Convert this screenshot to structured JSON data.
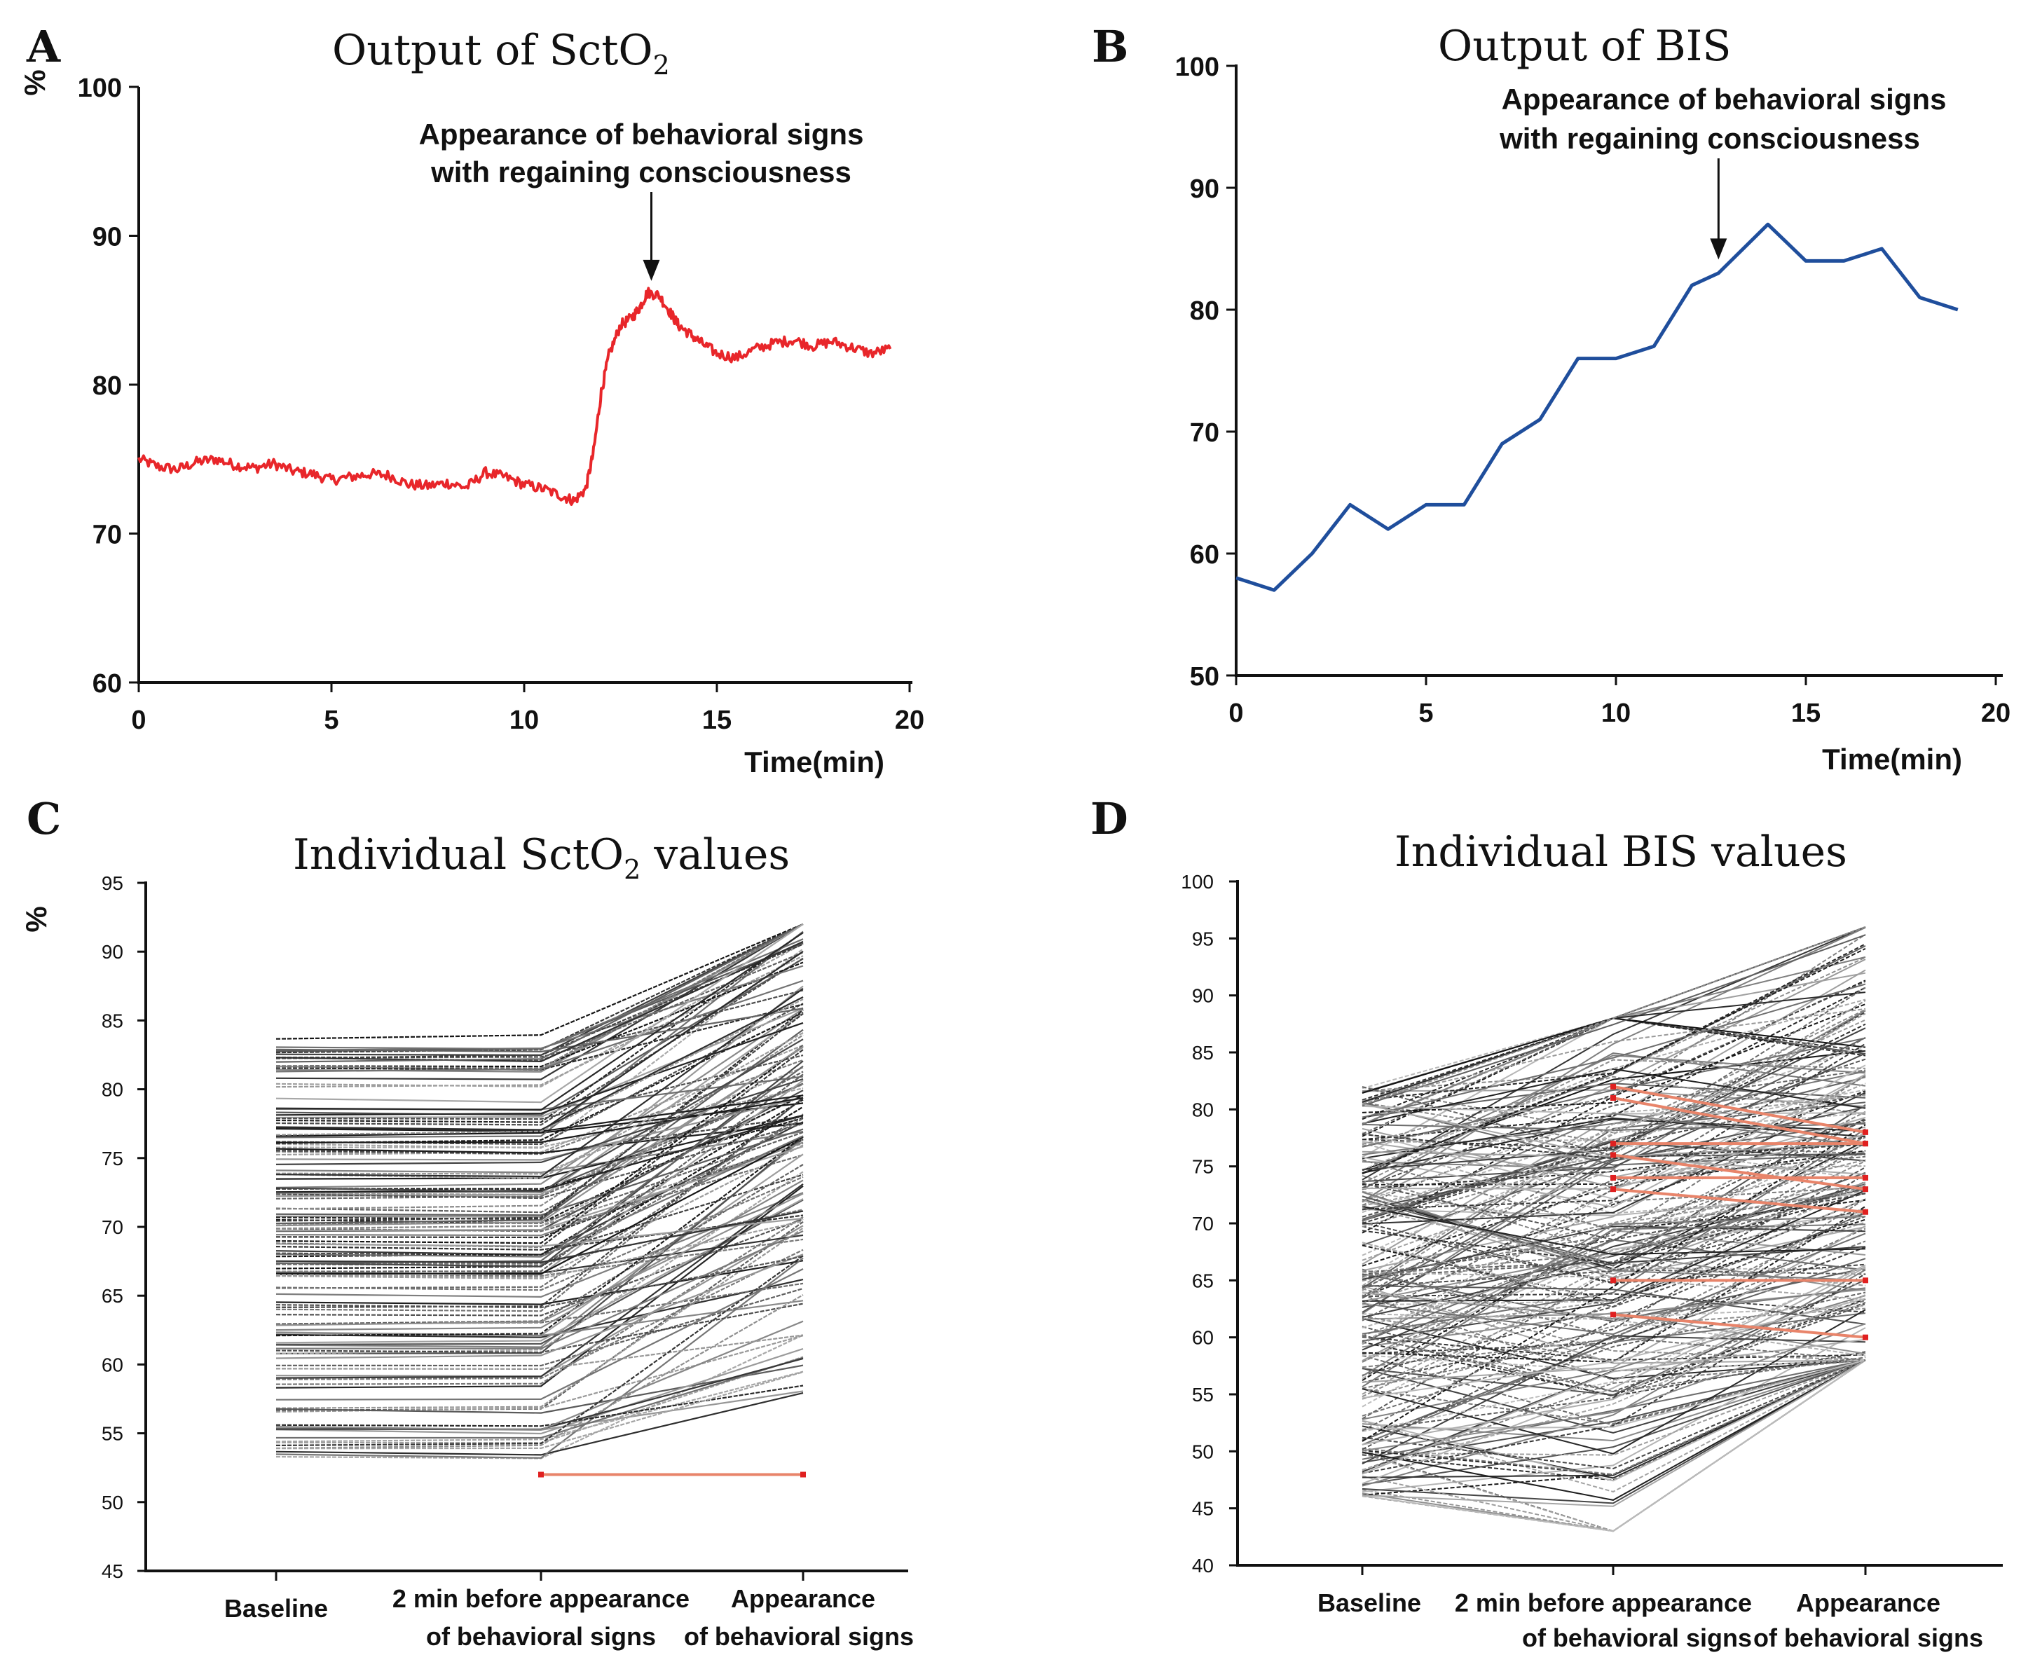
{
  "colors": {
    "sct_line": "#e8262a",
    "bis_line": "#1f4e9c",
    "individual": "#222222",
    "highlight": "#e8846a",
    "highlight_point": "#e02020"
  },
  "chart_data": [
    {
      "id": "A",
      "letter": "A",
      "type": "line",
      "title": "Output of SctO",
      "title_sub": "2",
      "ylabel": "%",
      "xlabel": "Time(min)",
      "xlim": [
        0,
        20
      ],
      "ylim": [
        60,
        100
      ],
      "xticks": [
        "0",
        "5",
        "10",
        "15",
        "20"
      ],
      "yticks": [
        "60",
        "70",
        "80",
        "90",
        "100"
      ],
      "annotation": {
        "line1": "Appearance of behavioral signs",
        "line2": "with regaining consciousness",
        "x": 13.3,
        "y": 86.5
      },
      "x": [
        0,
        0.5,
        1,
        1.5,
        2,
        2.5,
        3,
        3.5,
        4,
        4.5,
        5,
        5.5,
        6,
        6.5,
        7,
        7.5,
        8,
        8.5,
        9,
        9.5,
        10,
        10.5,
        11,
        11.3,
        11.6,
        11.8,
        12,
        12.2,
        12.5,
        12.8,
        13,
        13.2,
        13.5,
        13.8,
        14,
        14.3,
        14.6,
        15,
        15.5,
        16,
        16.5,
        17,
        17.5,
        18,
        18.5,
        19,
        19.5
      ],
      "values": [
        75,
        74.5,
        74.3,
        74.8,
        75,
        74.6,
        74.4,
        74.7,
        74.2,
        74,
        73.6,
        73.8,
        74,
        73.9,
        73.3,
        73.2,
        73.4,
        73.1,
        74.1,
        73.8,
        73.3,
        73.0,
        72.5,
        72.2,
        73.0,
        75.5,
        79.5,
        82.0,
        84.0,
        84.5,
        85.2,
        86.2,
        86.0,
        84.8,
        84.0,
        83.4,
        82.8,
        82.1,
        81.8,
        82.4,
        82.8,
        83.0,
        82.6,
        82.9,
        82.5,
        82.1,
        82.4
      ]
    },
    {
      "id": "B",
      "letter": "B",
      "type": "line",
      "title": "Output of BIS",
      "xlabel": "Time(min)",
      "xlim": [
        0,
        20
      ],
      "ylim": [
        50,
        100
      ],
      "xticks": [
        "0",
        "5",
        "10",
        "15",
        "20"
      ],
      "yticks": [
        "50",
        "60",
        "70",
        "80",
        "90",
        "100"
      ],
      "annotation": {
        "line1": "Appearance of behavioral signs",
        "line2": "with regaining consciousness",
        "x": 12.7,
        "y": 84
      },
      "x": [
        0,
        1,
        2,
        3,
        4,
        5,
        6,
        7,
        8,
        9,
        10,
        11,
        12,
        12.7,
        14,
        15,
        16,
        17,
        18,
        19
      ],
      "values": [
        58,
        57,
        60,
        64,
        62,
        64,
        64,
        69,
        71,
        76,
        76,
        77,
        82,
        83,
        87,
        84,
        84,
        85,
        81,
        80
      ]
    },
    {
      "id": "C",
      "letter": "C",
      "type": "line",
      "title": "Individual SctO",
      "title_sub": "2",
      "title_rest": " values",
      "ylabel": "%",
      "ylim": [
        45,
        95
      ],
      "yticks": [
        "45",
        "50",
        "55",
        "60",
        "65",
        "70",
        "75",
        "80",
        "85",
        "90",
        "95"
      ],
      "categories": [
        "Baseline",
        "2 min before appearance",
        "of behavioral signs",
        "Appearance",
        "of behavioral signs"
      ],
      "n_series": 150,
      "highlight": {
        "values": [
          52,
          52
        ]
      }
    },
    {
      "id": "D",
      "letter": "D",
      "type": "line",
      "title": "Individual BIS values",
      "ylim": [
        40,
        100
      ],
      "yticks": [
        "40",
        "45",
        "50",
        "55",
        "60",
        "65",
        "70",
        "75",
        "80",
        "85",
        "90",
        "95",
        "100"
      ],
      "categories": [
        "Baseline",
        "2 min before appearance",
        "of behavioral signs",
        "Appearance",
        "of behavioral signs"
      ],
      "n_series": 230,
      "highlight": {
        "series": [
          [
            82,
            78
          ],
          [
            81,
            77
          ],
          [
            77,
            77
          ],
          [
            76,
            73
          ],
          [
            74,
            74
          ],
          [
            73,
            71
          ],
          [
            65,
            65
          ],
          [
            62,
            60
          ]
        ]
      }
    }
  ]
}
